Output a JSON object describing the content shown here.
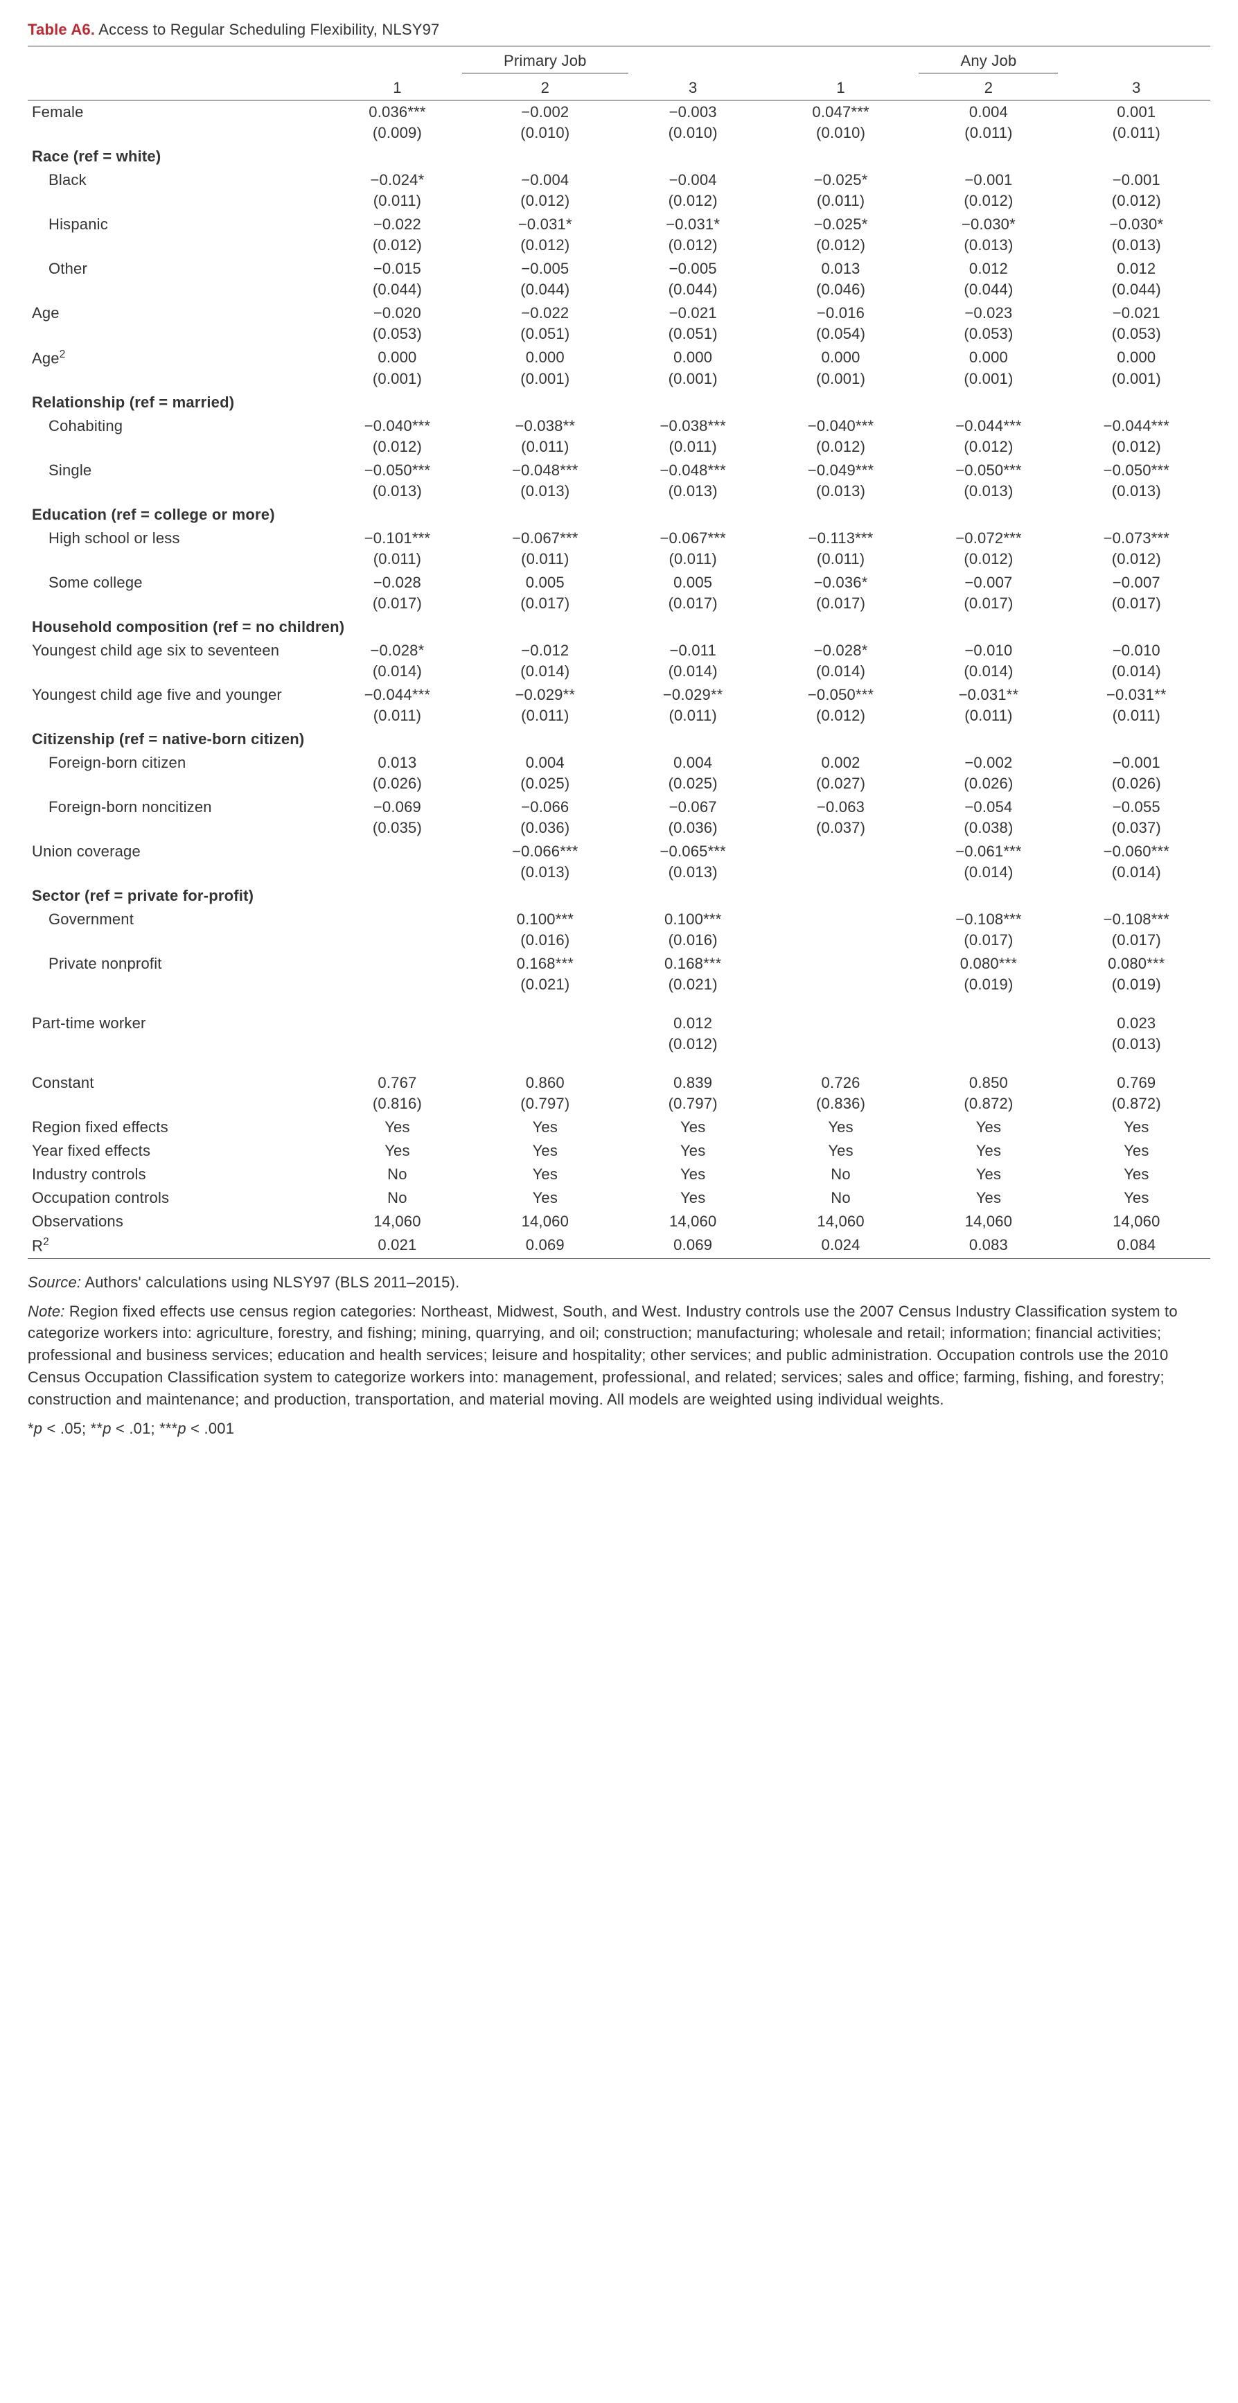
{
  "title_label": "Table A6.",
  "title_text": " Access to Regular Scheduling Flexibility, NLSY97",
  "group_headers": [
    "Primary Job",
    "Any Job"
  ],
  "col_headers": [
    "1",
    "2",
    "3",
    "1",
    "2",
    "3"
  ],
  "rows": [
    {
      "type": "coef",
      "label": "Female",
      "indent": 0,
      "vals": [
        "0.036***",
        "−0.002",
        "−0.003",
        "0.047***",
        "0.004",
        "0.001"
      ]
    },
    {
      "type": "se",
      "vals": [
        "(0.009)",
        "(0.010)",
        "(0.010)",
        "(0.010)",
        "(0.011)",
        "(0.011)"
      ]
    },
    {
      "type": "section",
      "label": "Race (ref = white)"
    },
    {
      "type": "coef",
      "label": "Black",
      "indent": 1,
      "vals": [
        "−0.024*",
        "−0.004",
        "−0.004",
        "−0.025*",
        "−0.001",
        "−0.001"
      ]
    },
    {
      "type": "se",
      "vals": [
        "(0.011)",
        "(0.012)",
        "(0.012)",
        "(0.011)",
        "(0.012)",
        "(0.012)"
      ]
    },
    {
      "type": "coef",
      "label": "Hispanic",
      "indent": 1,
      "vals": [
        "−0.022",
        "−0.031*",
        "−0.031*",
        "−0.025*",
        "−0.030*",
        "−0.030*"
      ]
    },
    {
      "type": "se",
      "vals": [
        "(0.012)",
        "(0.012)",
        "(0.012)",
        "(0.012)",
        "(0.013)",
        "(0.013)"
      ]
    },
    {
      "type": "coef",
      "label": "Other",
      "indent": 1,
      "vals": [
        "−0.015",
        "−0.005",
        "−0.005",
        "0.013",
        "0.012",
        "0.012"
      ]
    },
    {
      "type": "se",
      "vals": [
        "(0.044)",
        "(0.044)",
        "(0.044)",
        "(0.046)",
        "(0.044)",
        "(0.044)"
      ]
    },
    {
      "type": "coef",
      "label": "Age",
      "indent": 0,
      "vals": [
        "−0.020",
        "−0.022",
        "−0.021",
        "−0.016",
        "−0.023",
        "−0.021"
      ]
    },
    {
      "type": "se",
      "vals": [
        "(0.053)",
        "(0.051)",
        "(0.051)",
        "(0.054)",
        "(0.053)",
        "(0.053)"
      ]
    },
    {
      "type": "coef",
      "label": "Age²",
      "indent": 0,
      "vals": [
        "0.000",
        "0.000",
        "0.000",
        "0.000",
        "0.000",
        "0.000"
      ]
    },
    {
      "type": "se",
      "vals": [
        "(0.001)",
        "(0.001)",
        "(0.001)",
        "(0.001)",
        "(0.001)",
        "(0.001)"
      ]
    },
    {
      "type": "section",
      "label": "Relationship (ref = married)"
    },
    {
      "type": "coef",
      "label": "Cohabiting",
      "indent": 1,
      "vals": [
        "−0.040***",
        "−0.038**",
        "−0.038***",
        "−0.040***",
        "−0.044***",
        "−0.044***"
      ]
    },
    {
      "type": "se",
      "vals": [
        "(0.012)",
        "(0.011)",
        "(0.011)",
        "(0.012)",
        "(0.012)",
        "(0.012)"
      ]
    },
    {
      "type": "coef",
      "label": "Single",
      "indent": 1,
      "vals": [
        "−0.050***",
        "−0.048***",
        "−0.048***",
        "−0.049***",
        "−0.050***",
        "−0.050***"
      ]
    },
    {
      "type": "se",
      "vals": [
        "(0.013)",
        "(0.013)",
        "(0.013)",
        "(0.013)",
        "(0.013)",
        "(0.013)"
      ]
    },
    {
      "type": "section",
      "label": "Education (ref = college or more)"
    },
    {
      "type": "coef",
      "label": "High school or less",
      "indent": 1,
      "vals": [
        "−0.101***",
        "−0.067***",
        "−0.067***",
        "−0.113***",
        "−0.072***",
        "−0.073***"
      ]
    },
    {
      "type": "se",
      "vals": [
        "(0.011)",
        "(0.011)",
        "(0.011)",
        "(0.011)",
        "(0.012)",
        "(0.012)"
      ]
    },
    {
      "type": "coef",
      "label": "Some college",
      "indent": 1,
      "vals": [
        "−0.028",
        "0.005",
        "0.005",
        "−0.036*",
        "−0.007",
        "−0.007"
      ]
    },
    {
      "type": "se",
      "vals": [
        "(0.017)",
        "(0.017)",
        "(0.017)",
        "(0.017)",
        "(0.017)",
        "(0.017)"
      ]
    },
    {
      "type": "section",
      "label": "Household composition (ref = no children)"
    },
    {
      "type": "coef",
      "label": "Youngest child age six to seventeen",
      "indent": 0,
      "vals": [
        "−0.028*",
        "−0.012",
        "−0.011",
        "−0.028*",
        "−0.010",
        "−0.010"
      ]
    },
    {
      "type": "se",
      "vals": [
        "(0.014)",
        "(0.014)",
        "(0.014)",
        "(0.014)",
        "(0.014)",
        "(0.014)"
      ]
    },
    {
      "type": "coef",
      "label": "Youngest child age five and younger",
      "indent": 0,
      "vals": [
        "−0.044***",
        "−0.029**",
        "−0.029**",
        "−0.050***",
        "−0.031**",
        "−0.031**"
      ]
    },
    {
      "type": "se",
      "vals": [
        "(0.011)",
        "(0.011)",
        "(0.011)",
        "(0.012)",
        "(0.011)",
        "(0.011)"
      ]
    },
    {
      "type": "section",
      "label": "Citizenship (ref = native-born citizen)"
    },
    {
      "type": "coef",
      "label": "Foreign-born citizen",
      "indent": 1,
      "vals": [
        "0.013",
        "0.004",
        "0.004",
        "0.002",
        "−0.002",
        "−0.001"
      ]
    },
    {
      "type": "se",
      "vals": [
        "(0.026)",
        "(0.025)",
        "(0.025)",
        "(0.027)",
        "(0.026)",
        "(0.026)"
      ]
    },
    {
      "type": "coef",
      "label": "Foreign-born noncitizen",
      "indent": 1,
      "vals": [
        "−0.069",
        "−0.066",
        "−0.067",
        "−0.063",
        "−0.054",
        "−0.055"
      ]
    },
    {
      "type": "se",
      "vals": [
        "(0.035)",
        "(0.036)",
        "(0.036)",
        "(0.037)",
        "(0.038)",
        "(0.037)"
      ]
    },
    {
      "type": "coef",
      "label": "Union coverage",
      "indent": 0,
      "vals": [
        "",
        "−0.066***",
        "−0.065***",
        "",
        "−0.061***",
        "−0.060***"
      ]
    },
    {
      "type": "se",
      "vals": [
        "",
        "(0.013)",
        "(0.013)",
        "",
        "(0.014)",
        "(0.014)"
      ]
    },
    {
      "type": "section",
      "label": "Sector (ref = private for-profit)"
    },
    {
      "type": "coef",
      "label": "Government",
      "indent": 1,
      "vals": [
        "",
        "0.100***",
        "0.100***",
        "",
        "−0.108***",
        "−0.108***"
      ]
    },
    {
      "type": "se",
      "vals": [
        "",
        "(0.016)",
        "(0.016)",
        "",
        "(0.017)",
        "(0.017)"
      ]
    },
    {
      "type": "coef",
      "label": "Private nonprofit",
      "indent": 1,
      "vals": [
        "",
        "0.168***",
        "0.168***",
        "",
        "0.080***",
        "0.080***"
      ]
    },
    {
      "type": "se",
      "vals": [
        "",
        "(0.021)",
        "(0.021)",
        "",
        "(0.019)",
        "(0.019)"
      ]
    },
    {
      "type": "gap"
    },
    {
      "type": "coef",
      "label": "Part-time worker",
      "indent": 0,
      "vals": [
        "",
        "",
        "0.012",
        "",
        "",
        "0.023"
      ]
    },
    {
      "type": "se",
      "vals": [
        "",
        "",
        "(0.012)",
        "",
        "",
        "(0.013)"
      ]
    },
    {
      "type": "gap"
    },
    {
      "type": "coef",
      "label": "Constant",
      "indent": 0,
      "vals": [
        "0.767",
        "0.860",
        "0.839",
        "0.726",
        "0.850",
        "0.769"
      ]
    },
    {
      "type": "se",
      "vals": [
        "(0.816)",
        "(0.797)",
        "(0.797)",
        "(0.836)",
        "(0.872)",
        "(0.872)"
      ]
    },
    {
      "type": "plain",
      "label": "Region fixed effects",
      "vals": [
        "Yes",
        "Yes",
        "Yes",
        "Yes",
        "Yes",
        "Yes"
      ]
    },
    {
      "type": "plain",
      "label": "Year fixed effects",
      "vals": [
        "Yes",
        "Yes",
        "Yes",
        "Yes",
        "Yes",
        "Yes"
      ]
    },
    {
      "type": "plain",
      "label": "Industry controls",
      "vals": [
        "No",
        "Yes",
        "Yes",
        "No",
        "Yes",
        "Yes"
      ]
    },
    {
      "type": "plain",
      "label": "Occupation controls",
      "vals": [
        "No",
        "Yes",
        "Yes",
        "No",
        "Yes",
        "Yes"
      ]
    },
    {
      "type": "plain",
      "label": "Observations",
      "vals": [
        "14,060",
        "14,060",
        "14,060",
        "14,060",
        "14,060",
        "14,060"
      ]
    },
    {
      "type": "plain",
      "label": "R²",
      "vals": [
        "0.021",
        "0.069",
        "0.069",
        "0.024",
        "0.083",
        "0.084"
      ]
    }
  ],
  "footnotes": {
    "source_label": "Source:",
    "source_text": " Authors' calculations using NLSY97 (BLS 2011–2015).",
    "note_label": "Note:",
    "note_text": " Region fixed effects use census region categories: Northeast, Midwest, South, and West. Industry controls use the 2007 Census Industry Classification system to categorize workers into: agriculture, forestry, and fishing; mining, quarrying, and oil; construction; manufacturing; wholesale and retail; information; financial activities; professional and business services; education and health services; leisure and hospitality; other services; and public administration. Occupation controls use the 2010 Census Occupation Classification system to categorize workers into: management, professional, and related; services; sales and office; farming, fishing, and forestry; construction and maintenance; and production, transportation, and material moving. All models are weighted using individual weights.",
    "sig_text": "*p < .05; **p < .01; ***p < .001"
  }
}
